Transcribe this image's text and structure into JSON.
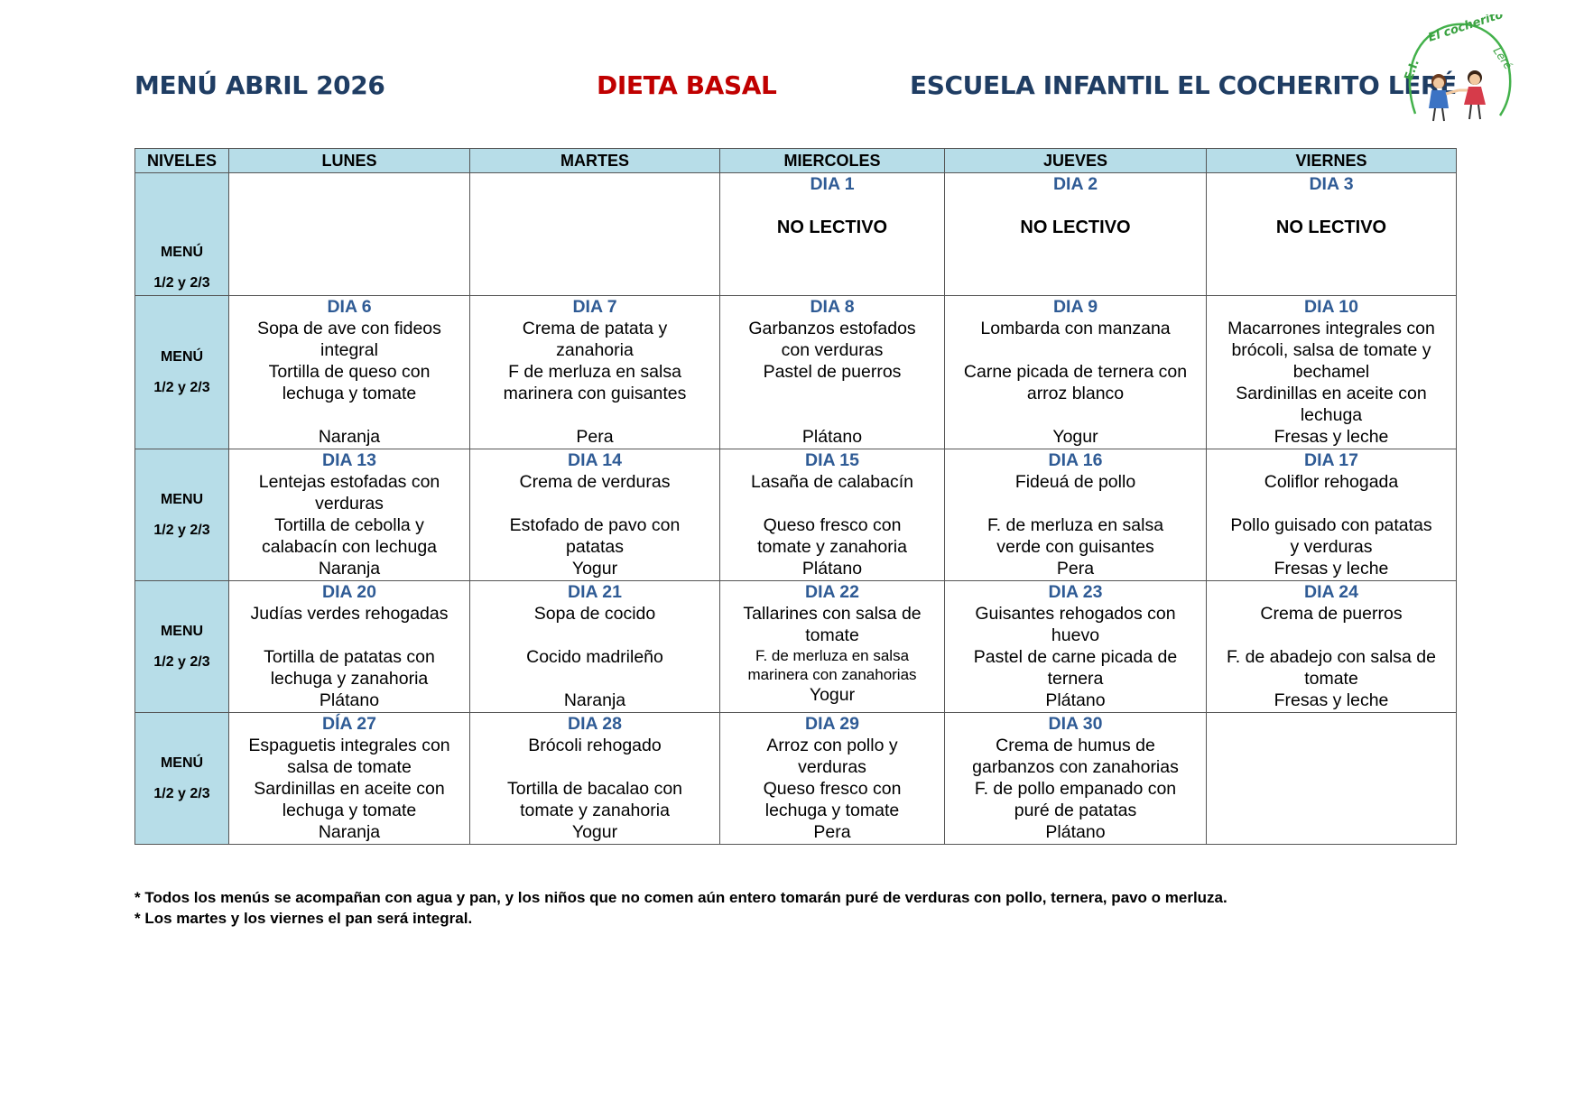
{
  "header": {
    "menu_title": "MENÚ ABRIL 2026",
    "diet": "DIETA BASAL",
    "school": "ESCUELA INFANTIL EL COCHERITO LERÉ"
  },
  "logo": {
    "text": "E.I. El cocherito Leré",
    "icon": "children-holding-hands-logo"
  },
  "columns": [
    "NIVELES",
    "LUNES",
    "MARTES",
    "MIERCOLES",
    "JUEVES",
    "VIERNES"
  ],
  "weeks": [
    {
      "level": [
        "MENÚ",
        "1/2  y 2/3"
      ],
      "days": [
        null,
        null,
        {
          "day": "DIA 1",
          "note": "NO LECTIVO"
        },
        {
          "day": "DIA 2",
          "note": "NO LECTIVO"
        },
        {
          "day": "DIA 3",
          "note": "NO LECTIVO"
        }
      ]
    },
    {
      "level": [
        "MENÚ",
        "1/2 y 2/3"
      ],
      "days": [
        {
          "day": "DIA 6",
          "lines": [
            "Sopa de ave con fideos",
            "integral",
            "Tortilla de queso con",
            "lechuga y tomate",
            "",
            "Naranja"
          ]
        },
        {
          "day": "DIA 7",
          "lines": [
            "Crema de patata y",
            "zanahoria",
            "F de merluza en salsa",
            "marinera con guisantes",
            "",
            "Pera"
          ]
        },
        {
          "day": "DIA 8",
          "lines": [
            "Garbanzos estofados",
            "con verduras",
            "Pastel de puerros",
            "",
            "",
            "Plátano"
          ]
        },
        {
          "day": "DIA 9",
          "lines": [
            "Lombarda con manzana",
            "",
            "Carne picada de ternera con",
            "arroz blanco",
            "",
            "Yogur"
          ]
        },
        {
          "day": "DIA 10",
          "lines": [
            "Macarrones integrales con",
            "brócoli, salsa de tomate y",
            "bechamel",
            "Sardinillas en aceite con",
            "lechuga",
            "Fresas y leche"
          ]
        }
      ]
    },
    {
      "level": [
        "MENU",
        "1/2 y 2/3"
      ],
      "days": [
        {
          "day": "DIA 13",
          "lines": [
            "Lentejas estofadas con",
            "verduras",
            "Tortilla de cebolla y",
            "calabacín con lechuga",
            "Naranja"
          ]
        },
        {
          "day": "DIA 14",
          "lines": [
            "Crema de verduras",
            "",
            "Estofado de pavo con",
            "patatas",
            "Yogur"
          ]
        },
        {
          "day": "DIA 15",
          "lines": [
            "Lasaña de calabacín",
            "",
            "Queso fresco con",
            "tomate y zanahoria",
            "Plátano"
          ]
        },
        {
          "day": "DIA 16",
          "lines": [
            "Fideuá de pollo",
            "",
            "F. de merluza en salsa",
            "verde con guisantes",
            "Pera"
          ]
        },
        {
          "day": "DIA 17",
          "lines": [
            "Coliflor rehogada",
            "",
            "Pollo guisado con patatas",
            "y verduras",
            "Fresas y leche"
          ]
        }
      ]
    },
    {
      "level": [
        "MENU",
        "1/2 y 2/3"
      ],
      "days": [
        {
          "day": "DIA 20",
          "lines": [
            "Judías verdes rehogadas",
            "",
            "Tortilla de patatas con",
            "lechuga y zanahoria",
            "Plátano"
          ]
        },
        {
          "day": "DIA 21",
          "lines": [
            "Sopa de cocido",
            "",
            "Cocido madrileño",
            "",
            "Naranja"
          ]
        },
        {
          "day": "DIA 22",
          "lines": [
            "Tallarines con salsa de",
            "tomate"
          ],
          "small": [
            "F. de merluza en salsa",
            "marinera con zanahorias"
          ],
          "last": "Yogur"
        },
        {
          "day": "DIA 23",
          "lines": [
            "Guisantes rehogados con",
            "huevo",
            "Pastel de carne picada de",
            "ternera",
            "Plátano"
          ]
        },
        {
          "day": "DIA 24",
          "lines": [
            "Crema de puerros",
            "",
            "F. de abadejo con salsa de",
            "tomate",
            "Fresas y leche"
          ]
        }
      ]
    },
    {
      "level": [
        "MENÚ",
        "1/2 y 2/3"
      ],
      "days": [
        {
          "day": "DÍA 27",
          "lines": [
            "Espaguetis integrales con",
            "salsa de tomate",
            "Sardinillas en aceite con",
            "lechuga y tomate",
            "Naranja"
          ]
        },
        {
          "day": "DIA 28",
          "lines": [
            "Brócoli rehogado",
            "",
            "Tortilla de bacalao con",
            "tomate y zanahoria",
            "Yogur"
          ]
        },
        {
          "day": "DIA 29",
          "lines": [
            "Arroz con pollo y",
            "verduras",
            "Queso fresco con",
            "lechuga y tomate",
            "Pera"
          ]
        },
        {
          "day": "DIA 30",
          "lines": [
            "Crema de humus de",
            "garbanzos con zanahorias",
            "F. de pollo empanado con",
            "puré de patatas",
            "Plátano"
          ]
        },
        null
      ]
    }
  ],
  "notes": [
    "* Todos los menús se acompañan con agua y pan, y los niños que no comen aún entero tomarán puré de verduras con pollo, ternera, pavo o merluza.",
    "* Los martes y los viernes el pan será integral."
  ]
}
